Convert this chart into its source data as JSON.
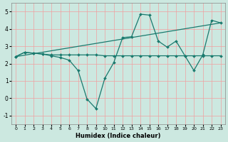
{
  "xlabel": "Humidex (Indice chaleur)",
  "bg_color": "#cce8e0",
  "line_color": "#1a7a6e",
  "grid_color": "#f0a0a0",
  "xlim": [
    -0.5,
    23.5
  ],
  "ylim": [
    -1.5,
    5.5
  ],
  "xticks": [
    0,
    1,
    2,
    3,
    4,
    5,
    6,
    7,
    8,
    9,
    10,
    11,
    12,
    13,
    14,
    15,
    16,
    17,
    18,
    19,
    20,
    21,
    22,
    23
  ],
  "yticks": [
    -1,
    0,
    1,
    2,
    3,
    4,
    5
  ],
  "lines": [
    {
      "x": [
        0,
        1,
        2,
        3,
        4,
        5,
        6,
        7,
        8,
        9,
        10,
        11,
        12,
        13,
        14,
        15,
        16,
        17,
        18,
        19,
        20,
        21,
        22,
        23
      ],
      "y": [
        2.4,
        2.65,
        2.6,
        2.55,
        2.5,
        2.5,
        2.5,
        2.5,
        2.5,
        2.5,
        2.45,
        2.45,
        2.45,
        2.45,
        2.45,
        2.45,
        2.45,
        2.45,
        2.45,
        2.45,
        2.45,
        2.45,
        2.45,
        2.45
      ]
    },
    {
      "x": [
        0,
        23
      ],
      "y": [
        2.4,
        4.35
      ]
    },
    {
      "x": [
        0,
        1,
        2,
        3,
        4,
        5,
        6,
        7,
        8,
        9,
        10,
        11,
        12,
        13,
        14,
        15,
        16,
        17,
        18,
        19,
        20,
        21,
        22,
        23
      ],
      "y": [
        2.4,
        2.65,
        2.6,
        2.55,
        2.45,
        2.35,
        2.2,
        1.6,
        -0.05,
        -0.6,
        1.15,
        2.05,
        3.5,
        3.55,
        4.85,
        4.8,
        3.3,
        2.95,
        3.3,
        2.45,
        1.6,
        2.5,
        4.5,
        4.35
      ]
    }
  ]
}
